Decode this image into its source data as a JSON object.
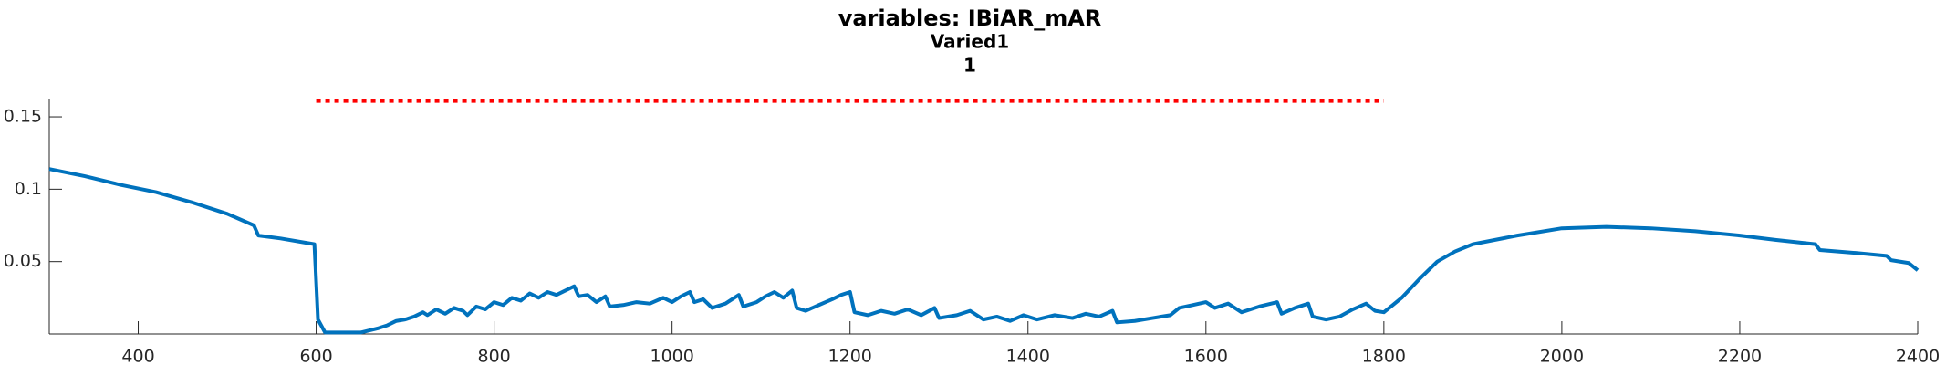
{
  "chart_data": {
    "type": "line",
    "title": "variables: IBiAR_mAR",
    "subtitle": "Varied1",
    "subtitle2": "1",
    "xlim": [
      300,
      2400
    ],
    "xticks": [
      400,
      600,
      800,
      1000,
      1200,
      1400,
      1600,
      1800,
      2000,
      2200,
      2400
    ],
    "ylim": [
      0,
      0.162
    ],
    "yticks": [
      0.05,
      0.1,
      0.15
    ],
    "series": [
      {
        "color": "#0072bd",
        "style": "solid",
        "x": [
          300,
          340,
          380,
          420,
          460,
          500,
          530,
          535,
          560,
          598,
          602,
          610,
          650,
          670,
          680,
          690,
          700,
          710,
          720,
          725,
          735,
          745,
          755,
          765,
          770,
          780,
          790,
          800,
          810,
          820,
          830,
          840,
          850,
          860,
          870,
          880,
          890,
          895,
          905,
          915,
          925,
          930,
          945,
          960,
          975,
          990,
          1000,
          1010,
          1020,
          1025,
          1035,
          1045,
          1060,
          1075,
          1080,
          1095,
          1105,
          1115,
          1125,
          1135,
          1140,
          1150,
          1165,
          1180,
          1190,
          1200,
          1205,
          1220,
          1235,
          1250,
          1265,
          1280,
          1295,
          1300,
          1320,
          1335,
          1350,
          1365,
          1380,
          1395,
          1410,
          1430,
          1450,
          1465,
          1480,
          1495,
          1500,
          1520,
          1540,
          1560,
          1570,
          1585,
          1600,
          1610,
          1625,
          1640,
          1660,
          1680,
          1685,
          1700,
          1715,
          1720,
          1735,
          1750,
          1765,
          1780,
          1790,
          1800,
          1820,
          1840,
          1860,
          1880,
          1900,
          1950,
          2000,
          2050,
          2100,
          2150,
          2200,
          2240,
          2285,
          2290,
          2330,
          2365,
          2370,
          2390,
          2400
        ],
        "values": [
          0.114,
          0.109,
          0.103,
          0.098,
          0.091,
          0.083,
          0.075,
          0.068,
          0.066,
          0.062,
          0.01,
          0.001,
          0.001,
          0.004,
          0.006,
          0.009,
          0.01,
          0.012,
          0.015,
          0.013,
          0.017,
          0.014,
          0.018,
          0.016,
          0.013,
          0.019,
          0.017,
          0.022,
          0.02,
          0.025,
          0.023,
          0.028,
          0.025,
          0.029,
          0.027,
          0.03,
          0.033,
          0.026,
          0.027,
          0.022,
          0.026,
          0.019,
          0.02,
          0.022,
          0.021,
          0.025,
          0.022,
          0.026,
          0.029,
          0.022,
          0.024,
          0.018,
          0.021,
          0.027,
          0.019,
          0.022,
          0.026,
          0.029,
          0.025,
          0.03,
          0.018,
          0.016,
          0.02,
          0.024,
          0.027,
          0.029,
          0.015,
          0.013,
          0.016,
          0.014,
          0.017,
          0.013,
          0.018,
          0.011,
          0.013,
          0.016,
          0.01,
          0.012,
          0.009,
          0.013,
          0.01,
          0.013,
          0.011,
          0.014,
          0.012,
          0.016,
          0.008,
          0.009,
          0.011,
          0.013,
          0.018,
          0.02,
          0.022,
          0.018,
          0.021,
          0.015,
          0.019,
          0.022,
          0.014,
          0.018,
          0.021,
          0.012,
          0.01,
          0.012,
          0.017,
          0.021,
          0.016,
          0.015,
          0.025,
          0.038,
          0.05,
          0.057,
          0.062,
          0.068,
          0.073,
          0.074,
          0.073,
          0.071,
          0.068,
          0.065,
          0.062,
          0.058,
          0.056,
          0.054,
          0.051,
          0.049,
          0.044
        ]
      },
      {
        "color": "#ff0000",
        "style": "dotted",
        "x": [
          600,
          1800
        ],
        "values": [
          0.161,
          0.161
        ]
      }
    ]
  }
}
